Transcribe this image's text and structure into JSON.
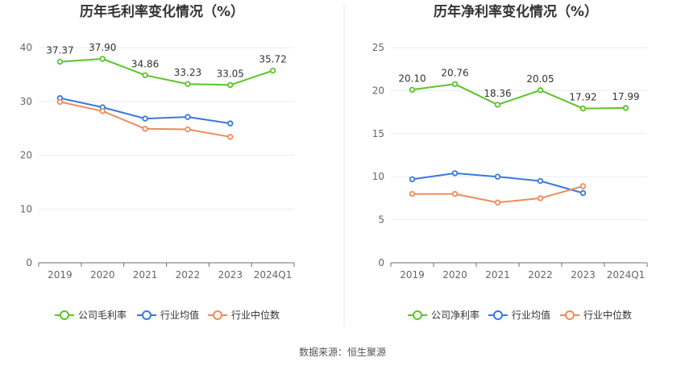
{
  "source_label": "数据来源：恒生聚源",
  "chart_data": [
    {
      "type": "line",
      "title": "历年毛利率变化情况（%）",
      "categories": [
        "2019",
        "2020",
        "2021",
        "2022",
        "2023",
        "2024Q1"
      ],
      "ylim": [
        0,
        40
      ],
      "yticks": [
        0,
        10,
        20,
        30,
        40
      ],
      "grid": true,
      "legend_position": "bottom",
      "series": [
        {
          "name": "公司毛利率",
          "color": "#5ac42a",
          "values": [
            37.37,
            37.9,
            34.86,
            33.23,
            33.05,
            35.72
          ],
          "labels": [
            "37.37",
            "37.90",
            "34.86",
            "33.23",
            "33.05",
            "35.72"
          ]
        },
        {
          "name": "行业均值",
          "color": "#3b78d8",
          "values": [
            30.6,
            28.9,
            26.8,
            27.1,
            25.9,
            null
          ]
        },
        {
          "name": "行业中位数",
          "color": "#ef8a5b",
          "values": [
            29.9,
            28.2,
            24.9,
            24.8,
            23.4,
            null
          ]
        }
      ]
    },
    {
      "type": "line",
      "title": "历年净利率变化情况（%）",
      "categories": [
        "2019",
        "2020",
        "2021",
        "2022",
        "2023",
        "2024Q1"
      ],
      "ylim": [
        0,
        25
      ],
      "yticks": [
        0,
        5,
        10,
        15,
        20,
        25
      ],
      "grid": true,
      "legend_position": "bottom",
      "series": [
        {
          "name": "公司净利率",
          "color": "#5ac42a",
          "values": [
            20.1,
            20.76,
            18.36,
            20.05,
            17.92,
            17.99
          ],
          "labels": [
            "20.10",
            "20.76",
            "18.36",
            "20.05",
            "17.92",
            "17.99"
          ]
        },
        {
          "name": "行业均值",
          "color": "#3b78d8",
          "values": [
            9.7,
            10.4,
            10.0,
            9.5,
            8.1,
            null
          ]
        },
        {
          "name": "行业中位数",
          "color": "#ef8a5b",
          "values": [
            8.0,
            8.0,
            7.0,
            7.5,
            8.9,
            null
          ]
        }
      ]
    }
  ]
}
